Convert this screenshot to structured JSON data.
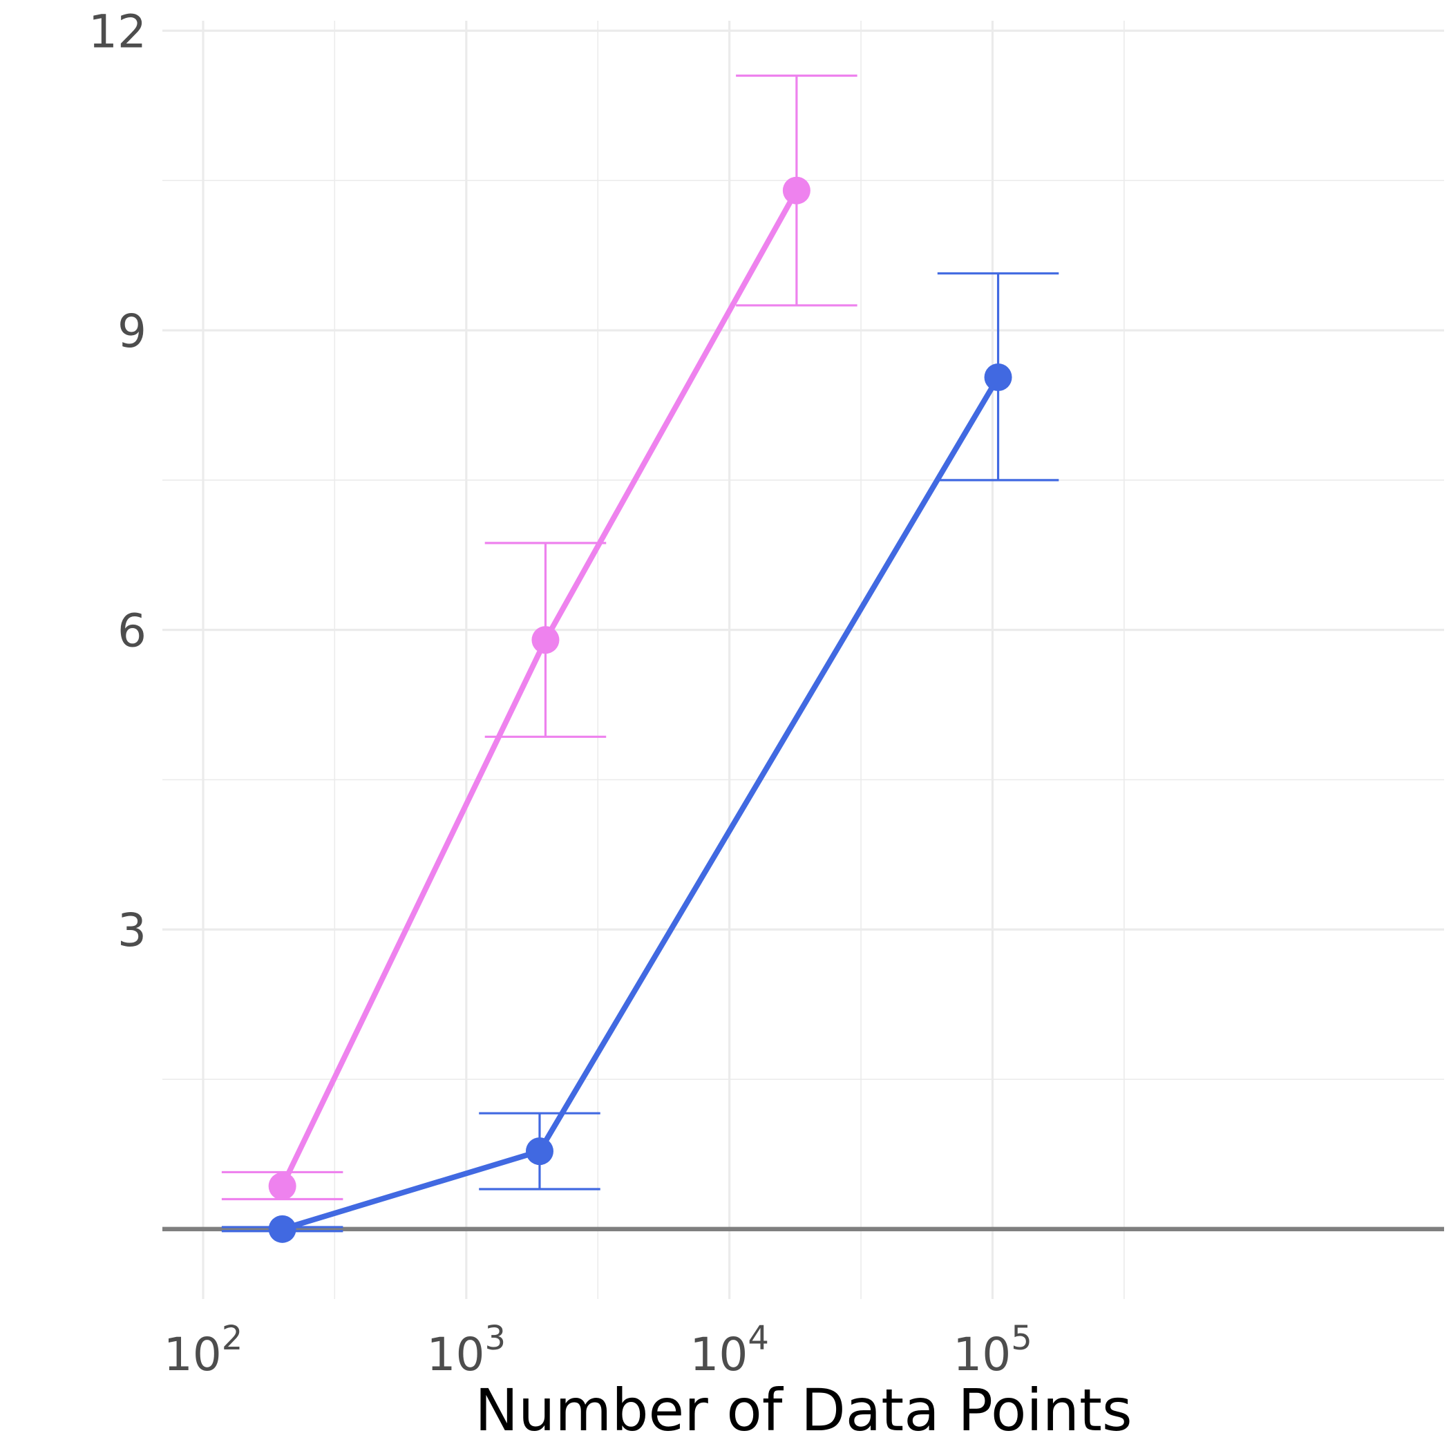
{
  "chart_data": {
    "type": "line",
    "title": "",
    "xlabel": "Number of Data Points",
    "ylabel": "",
    "xscale": "log10",
    "xlim": [
      70,
      5200000
    ],
    "ylim": [
      -0.7,
      12.1
    ],
    "x_ticks": [
      {
        "value": 100,
        "base": "10",
        "exp": "2"
      },
      {
        "value": 1000,
        "base": "10",
        "exp": "3"
      },
      {
        "value": 10000,
        "base": "10",
        "exp": "4"
      },
      {
        "value": 100000,
        "base": "10",
        "exp": "5"
      }
    ],
    "x_minor": [
      316,
      3162,
      31623,
      316228
    ],
    "y_ticks": [
      3,
      6,
      9,
      12
    ],
    "y_tick_labels": [
      "3",
      "6",
      "9",
      "12"
    ],
    "y_minor": [
      1.5,
      4.5,
      7.5,
      10.5
    ],
    "grid": true,
    "legend": "none",
    "reference_line_y": 0.0,
    "series": [
      {
        "color": "#EE82EE",
        "points": [
          {
            "x": 200,
            "y": 0.43,
            "lo": 0.3,
            "hi": 0.57
          },
          {
            "x": 2000,
            "y": 5.9,
            "lo": 4.93,
            "hi": 6.87
          },
          {
            "x": 18000,
            "y": 10.4,
            "lo": 9.25,
            "hi": 11.55
          }
        ]
      },
      {
        "color": "#4169E1",
        "points": [
          {
            "x": 200,
            "y": 0.0,
            "lo": -0.02,
            "hi": 0.02
          },
          {
            "x": 1900,
            "y": 0.78,
            "lo": 0.4,
            "hi": 1.16
          },
          {
            "x": 105000,
            "y": 8.53,
            "lo": 7.5,
            "hi": 9.57
          }
        ]
      }
    ]
  }
}
